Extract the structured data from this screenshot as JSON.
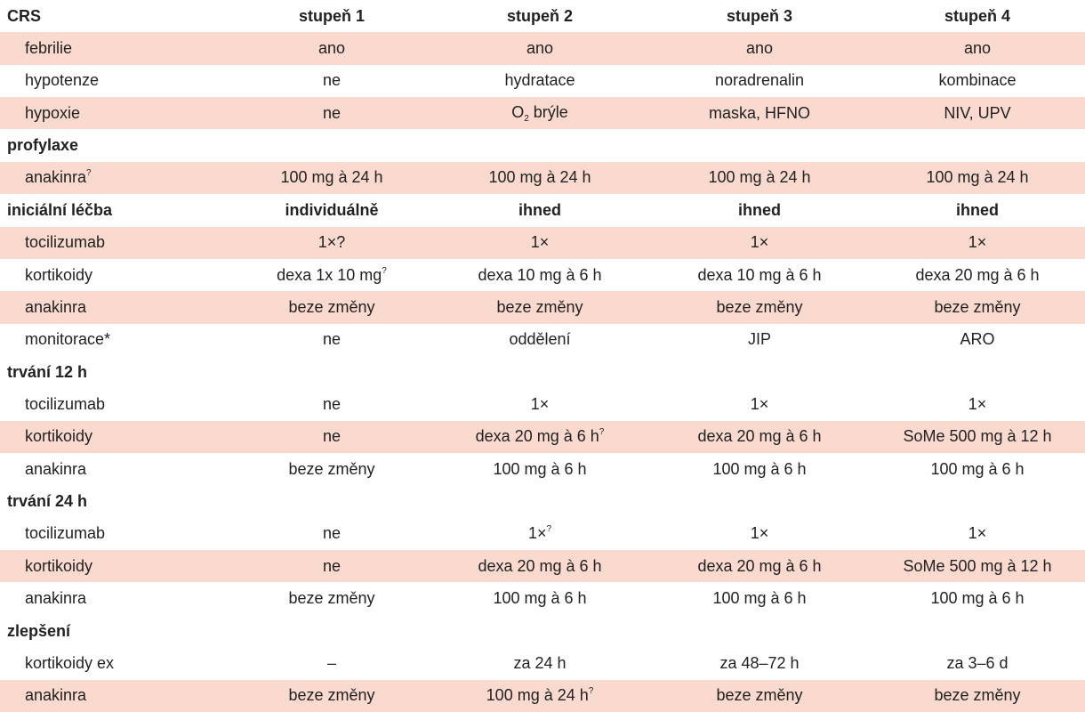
{
  "table": {
    "header": {
      "label": "CRS",
      "cols": [
        "stupeň 1",
        "stupeň 2",
        "stupeň 3",
        "stupeň 4"
      ]
    },
    "rows": [
      {
        "type": "row",
        "pink": true,
        "label": "febrilie",
        "cells": [
          "ano",
          "ano",
          "ano",
          "ano"
        ]
      },
      {
        "type": "row",
        "pink": false,
        "label": "hypotenze",
        "cells": [
          "ne",
          "hydratace",
          "noradrenalin",
          "kombinace"
        ]
      },
      {
        "type": "row",
        "pink": true,
        "label": "hypoxie",
        "cells": [
          "ne",
          "O",
          "maska, HFNO",
          "NIV, UPV"
        ],
        "cell2_sub": "2",
        "cell2_tail": " brýle"
      },
      {
        "type": "section",
        "label": "profylaxe"
      },
      {
        "type": "row",
        "pink": true,
        "label": "anakinra",
        "label_sup": "?",
        "cells": [
          "100 mg à 24 h",
          "100 mg à 24 h",
          "100 mg à 24 h",
          "100 mg à 24 h"
        ]
      },
      {
        "type": "section",
        "label": "iniciální léčba",
        "cells": [
          "individuálně",
          "ihned",
          "ihned",
          "ihned"
        ]
      },
      {
        "type": "row",
        "pink": true,
        "label": "tocilizumab",
        "cells": [
          "1×?",
          "1×",
          "1×",
          "1×"
        ]
      },
      {
        "type": "row",
        "pink": false,
        "label": "kortikoidy",
        "cells": [
          "dexa 1x 10 mg",
          "dexa 10 mg à 6 h",
          "dexa 10 mg à 6 h",
          "dexa 20 mg à 6 h"
        ],
        "cell1_sup": "?"
      },
      {
        "type": "row",
        "pink": true,
        "label": "anakinra",
        "cells": [
          "beze změny",
          "beze změny",
          "beze změny",
          "beze změny"
        ]
      },
      {
        "type": "row",
        "pink": false,
        "label": "monitorace*",
        "cells": [
          "ne",
          "oddělení",
          "JIP",
          "ARO"
        ]
      },
      {
        "type": "section",
        "label": "trvání 12 h"
      },
      {
        "type": "row",
        "pink": false,
        "label": "tocilizumab",
        "cells": [
          "ne",
          "1×",
          "1×",
          "1×"
        ]
      },
      {
        "type": "row",
        "pink": true,
        "label": "kortikoidy",
        "cells": [
          "ne",
          "dexa 20 mg à 6 h",
          "dexa 20 mg à 6 h",
          "SoMe 500 mg à 12 h"
        ],
        "cell2_sup": "?"
      },
      {
        "type": "row",
        "pink": false,
        "label": "anakinra",
        "cells": [
          "beze změny",
          "100 mg à 6 h",
          "100 mg à 6 h",
          "100 mg à 6 h"
        ]
      },
      {
        "type": "section",
        "label": "trvání 24 h"
      },
      {
        "type": "row",
        "pink": false,
        "label": "tocilizumab",
        "cells": [
          "ne",
          "1×",
          "1×",
          "1×"
        ],
        "cell2_sup": "?"
      },
      {
        "type": "row",
        "pink": true,
        "label": "kortikoidy",
        "cells": [
          "ne",
          "dexa 20 mg à 6 h",
          "dexa 20 mg à 6 h",
          "SoMe 500 mg à 12 h"
        ]
      },
      {
        "type": "row",
        "pink": false,
        "label": "anakinra",
        "cells": [
          "beze změny",
          "100 mg à 6 h",
          "100 mg à 6 h",
          "100 mg à 6 h"
        ]
      },
      {
        "type": "section",
        "label": "zlepšení"
      },
      {
        "type": "row",
        "pink": false,
        "label": "kortikoidy ex",
        "cells": [
          "–",
          "za 24 h",
          "za 48–72 h",
          "za 3–6 d"
        ]
      },
      {
        "type": "row",
        "pink": true,
        "label": "anakinra",
        "cells": [
          "beze změny",
          "100 mg à 24 h",
          "beze změny",
          "beze změny"
        ],
        "cell2_sup": "?"
      }
    ]
  }
}
